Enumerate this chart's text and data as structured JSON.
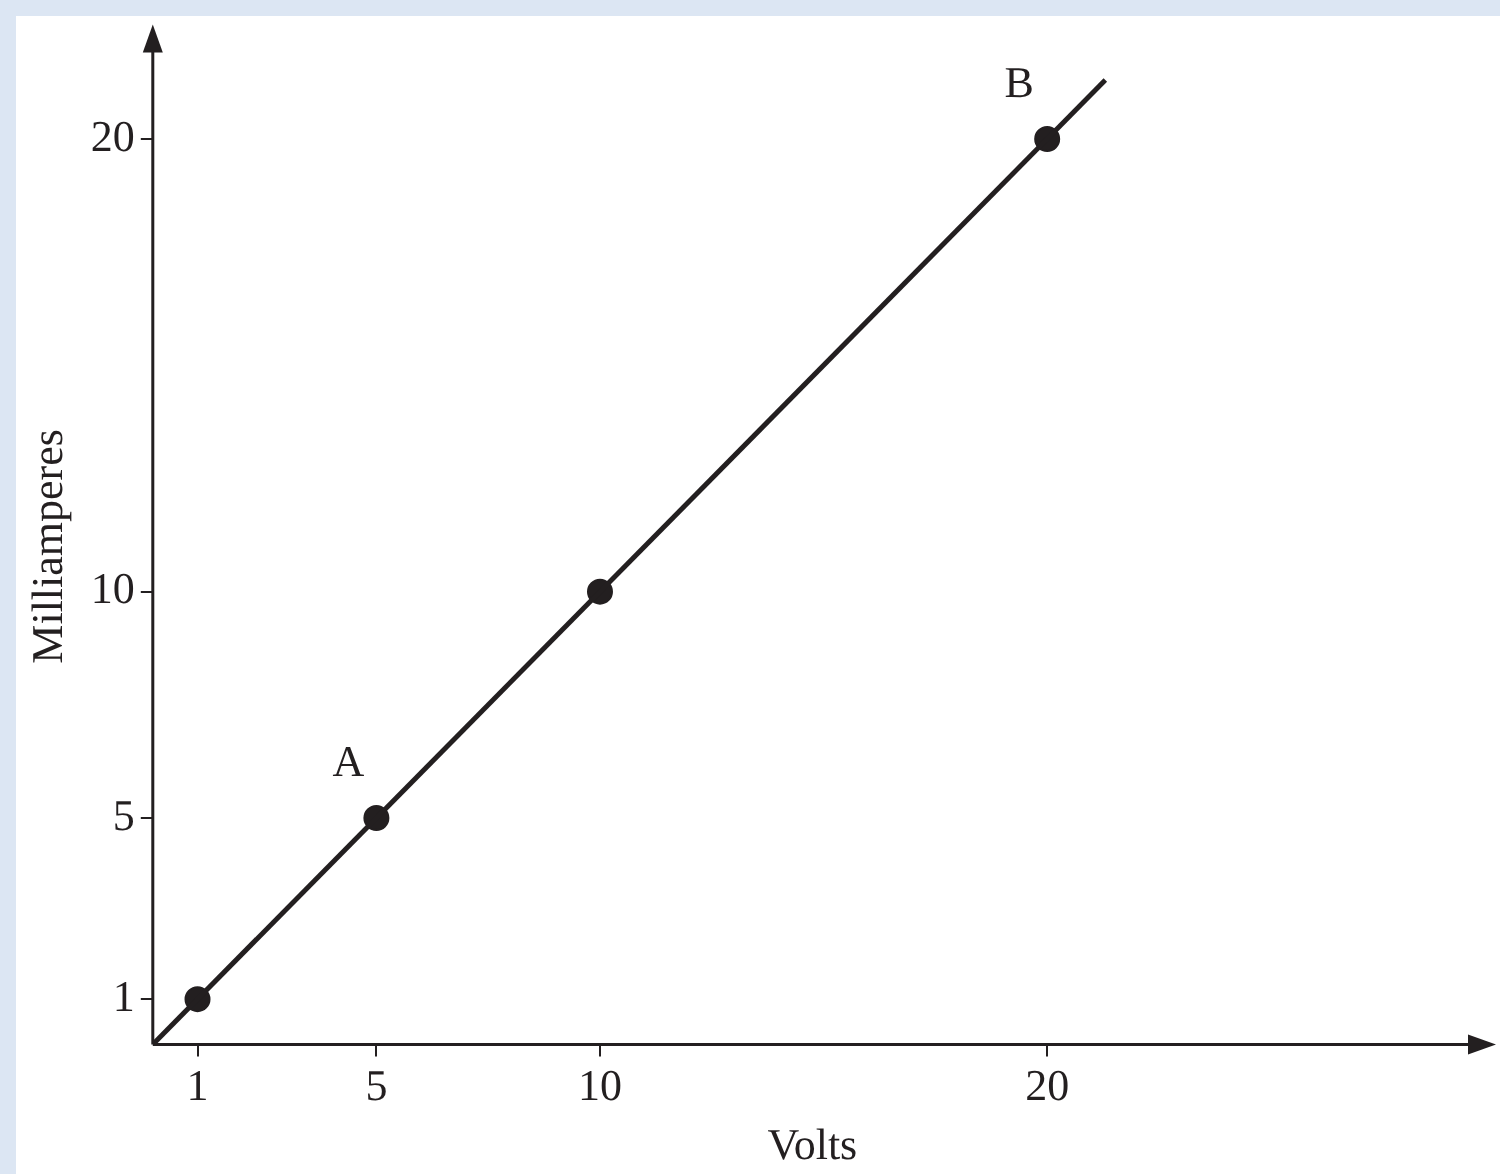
{
  "chart_data": {
    "type": "scatter",
    "xlabel": "Volts",
    "ylabel": "Milliamperes",
    "xlim": [
      0,
      29.5
    ],
    "ylim": [
      0,
      22
    ],
    "xticks": [
      1,
      5,
      10,
      20
    ],
    "yticks": [
      1,
      5,
      10,
      20
    ],
    "grid": false,
    "legend": false,
    "series": [
      {
        "type": "line",
        "x": [
          0,
          21.3
        ],
        "values": [
          0,
          21.3
        ],
        "color": "#231f20",
        "marker": "none"
      },
      {
        "type": "scatter",
        "x": [
          1,
          5,
          10,
          20
        ],
        "values": [
          1,
          5,
          10,
          20
        ],
        "color": "#231f20",
        "marker": "circle"
      }
    ],
    "annotations": [
      {
        "text": "A",
        "x": 5,
        "y": 5
      },
      {
        "text": "B",
        "x": 20,
        "y": 20
      }
    ]
  }
}
